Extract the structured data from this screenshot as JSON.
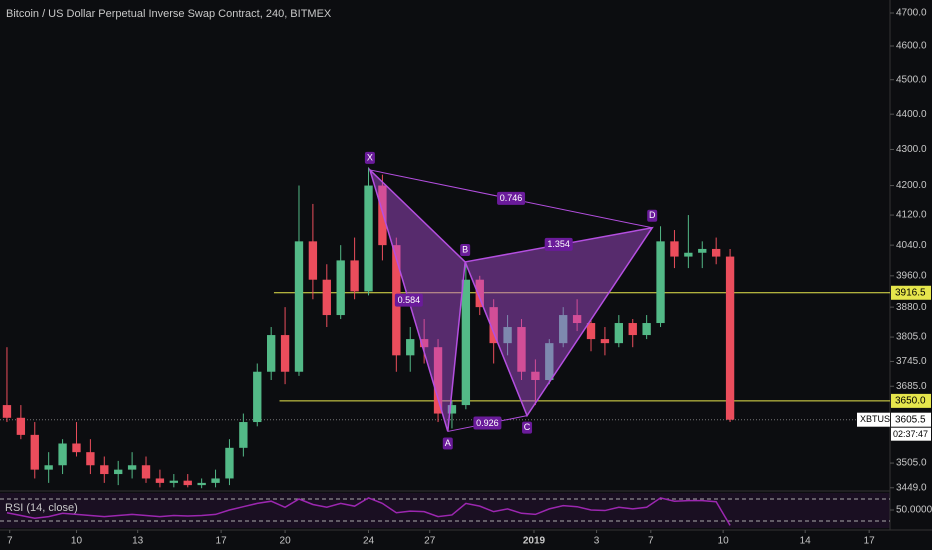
{
  "chart_data": {
    "type": "candlestick",
    "title": "Bitcoin / US Dollar Perpetual Inverse Swap Contract, 240, BITMEX",
    "log_scale": true,
    "up_color": "#53b987",
    "down_color": "#eb4d5c",
    "ylim": [
      3444,
      4740
    ],
    "yticks": [
      {
        "value": 4700,
        "label": "4700.0"
      },
      {
        "value": 4600,
        "label": "4600.0"
      },
      {
        "value": 4500,
        "label": "4500.0"
      },
      {
        "value": 4400,
        "label": "4400.0"
      },
      {
        "value": 4300,
        "label": "4300.0"
      },
      {
        "value": 4200,
        "label": "4200.0"
      },
      {
        "value": 4120,
        "label": "4120.0"
      },
      {
        "value": 4040,
        "label": "4040.0"
      },
      {
        "value": 3960,
        "label": "3960.0"
      },
      {
        "value": 3880,
        "label": "3880.0"
      },
      {
        "value": 3805,
        "label": "3805.0"
      },
      {
        "value": 3745,
        "label": "3745.0"
      },
      {
        "value": 3685,
        "label": "3685.0"
      },
      {
        "value": 3505,
        "label": "3505.0"
      },
      {
        "value": 3449,
        "label": "3449.0"
      }
    ],
    "xlim": [
      0,
      64
    ],
    "xticks": [
      {
        "value": 0.7,
        "label": "7"
      },
      {
        "value": 5.5,
        "label": "10"
      },
      {
        "value": 9.9,
        "label": "13"
      },
      {
        "value": 15.9,
        "label": "17"
      },
      {
        "value": 20.5,
        "label": "20"
      },
      {
        "value": 26.5,
        "label": "24"
      },
      {
        "value": 30.9,
        "label": "27"
      },
      {
        "value": 38.4,
        "label": "2019"
      },
      {
        "value": 42.9,
        "label": "3"
      },
      {
        "value": 46.8,
        "label": "7"
      },
      {
        "value": 52,
        "label": "10"
      },
      {
        "value": 57.9,
        "label": "14"
      },
      {
        "value": 62.5,
        "label": "17"
      }
    ],
    "ohlc": [
      [
        3640,
        3780,
        3600,
        3610
      ],
      [
        3610,
        3640,
        3560,
        3570
      ],
      [
        3570,
        3600,
        3470,
        3490
      ],
      [
        3490,
        3530,
        3460,
        3500
      ],
      [
        3500,
        3560,
        3480,
        3550
      ],
      [
        3550,
        3600,
        3520,
        3530
      ],
      [
        3530,
        3560,
        3480,
        3500
      ],
      [
        3500,
        3520,
        3460,
        3480
      ],
      [
        3480,
        3510,
        3455,
        3490
      ],
      [
        3490,
        3530,
        3470,
        3500
      ],
      [
        3500,
        3520,
        3460,
        3470
      ],
      [
        3470,
        3490,
        3450,
        3460
      ],
      [
        3460,
        3480,
        3450,
        3465
      ],
      [
        3465,
        3480,
        3450,
        3455
      ],
      [
        3455,
        3470,
        3448,
        3460
      ],
      [
        3460,
        3490,
        3450,
        3470
      ],
      [
        3470,
        3560,
        3455,
        3540
      ],
      [
        3540,
        3620,
        3520,
        3600
      ],
      [
        3600,
        3740,
        3590,
        3720
      ],
      [
        3720,
        3830,
        3700,
        3810
      ],
      [
        3810,
        3880,
        3690,
        3720
      ],
      [
        3720,
        4200,
        3710,
        4050
      ],
      [
        4050,
        4150,
        3900,
        3950
      ],
      [
        3950,
        3990,
        3830,
        3860
      ],
      [
        3860,
        4040,
        3850,
        4000
      ],
      [
        4000,
        4060,
        3900,
        3920
      ],
      [
        3920,
        4250,
        3910,
        4200
      ],
      [
        4200,
        4230,
        4000,
        4040
      ],
      [
        4040,
        4060,
        3720,
        3760
      ],
      [
        3760,
        3830,
        3720,
        3800
      ],
      [
        3800,
        3850,
        3740,
        3780
      ],
      [
        3780,
        3800,
        3600,
        3620
      ],
      [
        3620,
        3650,
        3585,
        3640
      ],
      [
        3640,
        3990,
        3630,
        3950
      ],
      [
        3950,
        3960,
        3860,
        3880
      ],
      [
        3880,
        3900,
        3740,
        3790
      ],
      [
        3790,
        3860,
        3760,
        3830
      ],
      [
        3830,
        3850,
        3700,
        3720
      ],
      [
        3720,
        3750,
        3640,
        3700
      ],
      [
        3700,
        3800,
        3690,
        3790
      ],
      [
        3790,
        3880,
        3780,
        3860
      ],
      [
        3860,
        3900,
        3820,
        3840
      ],
      [
        3840,
        3850,
        3770,
        3800
      ],
      [
        3800,
        3830,
        3760,
        3790
      ],
      [
        3790,
        3860,
        3780,
        3840
      ],
      [
        3840,
        3850,
        3780,
        3810
      ],
      [
        3810,
        3860,
        3800,
        3840
      ],
      [
        3840,
        4090,
        3830,
        4050
      ],
      [
        4050,
        4080,
        3980,
        4010
      ],
      [
        4010,
        4120,
        3980,
        4020
      ],
      [
        4020,
        4050,
        3980,
        4030
      ],
      [
        4030,
        4060,
        3990,
        4010
      ],
      [
        4010,
        4030,
        3600,
        3605.5
      ]
    ],
    "pattern": {
      "color": "#b44fe0",
      "points": [
        {
          "label": "X",
          "x": 26.6,
          "y": 4243
        },
        {
          "label": "A",
          "x": 32.2,
          "y": 3578
        },
        {
          "label": "B",
          "x": 33.45,
          "y": 3996
        },
        {
          "label": "C",
          "x": 37.9,
          "y": 3615
        },
        {
          "label": "D",
          "x": 46.9,
          "y": 4086
        }
      ],
      "ratios": [
        0.584,
        0.746,
        1.354,
        0.926
      ]
    },
    "hlines": {
      "color": "#e6e64c",
      "lines": [
        {
          "value": 3916.5,
          "start": 19.7
        },
        {
          "value": 3650,
          "label": "3650.0",
          "start": 20.1
        }
      ]
    },
    "last_price": {
      "symbol": "XBTUSD",
      "value": 3605.5,
      "countdown": "02:37:47"
    },
    "rsi": {
      "title": "RSI (14, close)",
      "color": "#9c27b0",
      "ylim": [
        17.3,
        80.9
      ],
      "levels": [
        70,
        30
      ],
      "yticks": [
        {
          "value": 50,
          "label": "50.0000"
        }
      ],
      "values": [
        45,
        40,
        35,
        38,
        44,
        42,
        40,
        38,
        40,
        42,
        40,
        38,
        40,
        39,
        40,
        42,
        50,
        56,
        62,
        66,
        55,
        70,
        60,
        55,
        62,
        57,
        72,
        62,
        45,
        48,
        47,
        38,
        41,
        62,
        57,
        47,
        52,
        44,
        42,
        52,
        58,
        56,
        50,
        49,
        55,
        52,
        55,
        72,
        66,
        67,
        67,
        65,
        22
      ]
    }
  }
}
